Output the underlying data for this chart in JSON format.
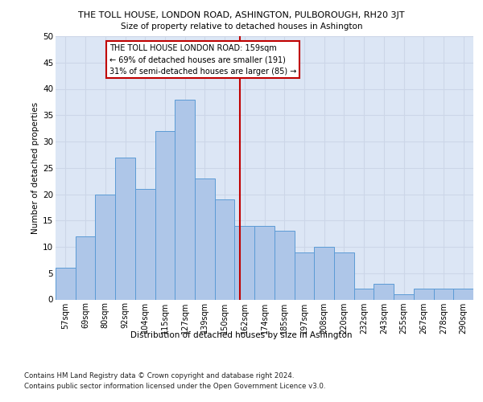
{
  "title": "THE TOLL HOUSE, LONDON ROAD, ASHINGTON, PULBOROUGH, RH20 3JT",
  "subtitle": "Size of property relative to detached houses in Ashington",
  "xlabel": "Distribution of detached houses by size in Ashington",
  "ylabel": "Number of detached properties",
  "bar_labels": [
    "57sqm",
    "69sqm",
    "80sqm",
    "92sqm",
    "104sqm",
    "115sqm",
    "127sqm",
    "139sqm",
    "150sqm",
    "162sqm",
    "174sqm",
    "185sqm",
    "197sqm",
    "208sqm",
    "220sqm",
    "232sqm",
    "243sqm",
    "255sqm",
    "267sqm",
    "278sqm",
    "290sqm"
  ],
  "bar_values": [
    6,
    12,
    20,
    27,
    21,
    32,
    38,
    23,
    19,
    14,
    14,
    13,
    9,
    10,
    9,
    2,
    3,
    1,
    2,
    2,
    2
  ],
  "bar_color": "#aec6e8",
  "bar_edge_color": "#5b9bd5",
  "vline_color": "#c00000",
  "annotation_lines": [
    "THE TOLL HOUSE LONDON ROAD: 159sqm",
    "← 69% of detached houses are smaller (191)",
    "31% of semi-detached houses are larger (85) →"
  ],
  "annotation_box_color": "#c00000",
  "ylim": [
    0,
    50
  ],
  "yticks": [
    0,
    5,
    10,
    15,
    20,
    25,
    30,
    35,
    40,
    45,
    50
  ],
  "grid_color": "#ccd6e8",
  "bg_color": "#dce6f5",
  "footer_line1": "Contains HM Land Registry data © Crown copyright and database right 2024.",
  "footer_line2": "Contains public sector information licensed under the Open Government Licence v3.0."
}
